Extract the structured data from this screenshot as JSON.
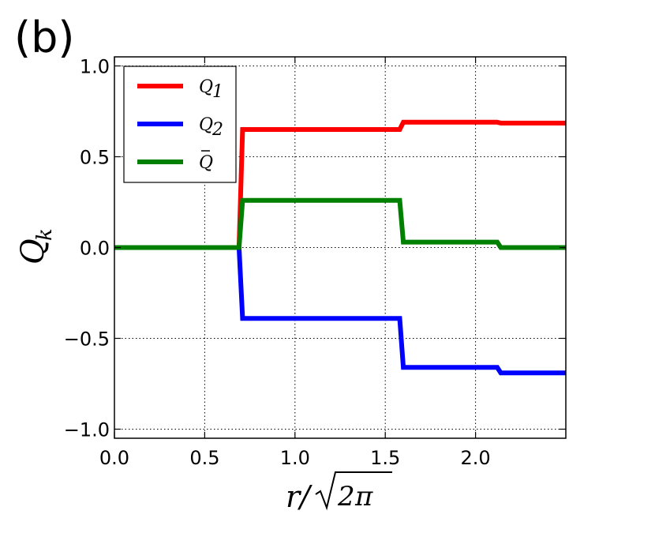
{
  "panel_label": "(b)",
  "chart_data": {
    "type": "line",
    "xlabel": "r/√2π",
    "ylabel": "Q_k",
    "xlim": [
      0.0,
      2.5
    ],
    "ylim": [
      -1.05,
      1.05
    ],
    "x_ticks": [
      0.0,
      0.5,
      1.0,
      1.5,
      2.0
    ],
    "x_tick_labels": [
      "0.0",
      "0.5",
      "1.0",
      "1.5",
      "2.0"
    ],
    "y_ticks": [
      1.0,
      0.5,
      0.0,
      -0.5,
      -1.0
    ],
    "y_tick_labels": [
      "1.0",
      "0.5",
      "0.0",
      "−0.5",
      "−1.0"
    ],
    "grid": true,
    "grid_style": "dotted",
    "legend_position": "top-left",
    "series": [
      {
        "name": "Q1",
        "label_main": "Q",
        "label_sub": "1",
        "color": "#ff0000",
        "x": [
          0.0,
          0.69,
          0.71,
          1.58,
          1.6,
          2.12,
          2.14,
          2.5
        ],
        "y": [
          0.0,
          0.0,
          0.65,
          0.65,
          0.69,
          0.69,
          0.685,
          0.685
        ]
      },
      {
        "name": "Q2",
        "label_main": "Q",
        "label_sub": "2",
        "color": "#0000ff",
        "x": [
          0.0,
          0.69,
          0.71,
          1.58,
          1.6,
          2.12,
          2.14,
          2.5
        ],
        "y": [
          0.0,
          0.0,
          -0.39,
          -0.39,
          -0.66,
          -0.66,
          -0.69,
          -0.69
        ]
      },
      {
        "name": "Q̄",
        "label_main": "Q",
        "label_sub": "",
        "label_bar": true,
        "color": "#008000",
        "x": [
          0.0,
          0.69,
          0.71,
          1.58,
          1.6,
          2.12,
          2.14,
          2.5
        ],
        "y": [
          0.0,
          0.0,
          0.26,
          0.26,
          0.03,
          0.03,
          0.0,
          0.0
        ]
      }
    ]
  }
}
